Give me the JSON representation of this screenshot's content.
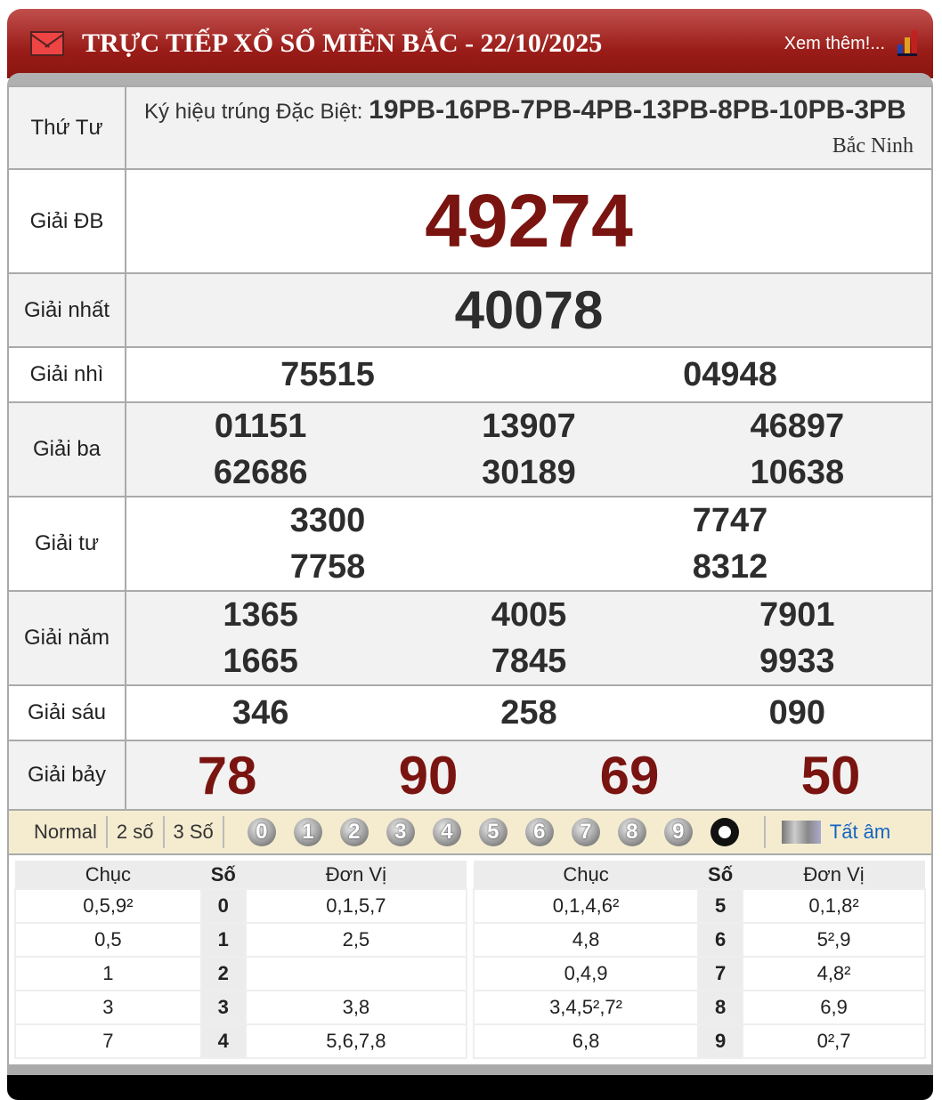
{
  "header": {
    "title": "TRỰC TIẾP XỔ SỐ MIỀN BẮC - 22/10/2025",
    "more": "Xem thêm!..."
  },
  "info": {
    "day": "Thứ Tư",
    "code_label": "Ký hiệu trúng Đặc Biệt: ",
    "codes": "19PB-16PB-7PB-4PB-13PB-8PB-10PB-3PB",
    "province": "Bắc Ninh"
  },
  "prizes": {
    "db": {
      "label": "Giải ĐB",
      "values": [
        "49274"
      ]
    },
    "nhat": {
      "label": "Giải nhất",
      "values": [
        "40078"
      ]
    },
    "nhi": {
      "label": "Giải nhì",
      "values": [
        "75515",
        "04948"
      ]
    },
    "ba": {
      "label": "Giải ba",
      "values": [
        "01151",
        "13907",
        "46897",
        "62686",
        "30189",
        "10638"
      ]
    },
    "tu": {
      "label": "Giải tư",
      "values": [
        "3300",
        "7747",
        "7758",
        "8312"
      ]
    },
    "nam": {
      "label": "Giải năm",
      "values": [
        "1365",
        "4005",
        "7901",
        "1665",
        "7845",
        "9933"
      ]
    },
    "sau": {
      "label": "Giải sáu",
      "values": [
        "346",
        "258",
        "090"
      ]
    },
    "bay": {
      "label": "Giải bảy",
      "values": [
        "78",
        "90",
        "69",
        "50"
      ]
    }
  },
  "toolbar": {
    "options": [
      "Normal",
      "2 số",
      "3 Số"
    ],
    "digits": [
      "0",
      "1",
      "2",
      "3",
      "4",
      "5",
      "6",
      "7",
      "8",
      "9"
    ],
    "all": "Tất âm"
  },
  "loto": {
    "headers": [
      "Chục",
      "Số",
      "Đơn Vị"
    ],
    "left": [
      [
        "0,5,9²",
        "0",
        "0,1,5,7"
      ],
      [
        "0,5",
        "1",
        "2,5"
      ],
      [
        "1",
        "2",
        ""
      ],
      [
        "3",
        "3",
        "3,8"
      ],
      [
        "7",
        "4",
        "5,6,7,8"
      ]
    ],
    "right": [
      [
        "0,1,4,6²",
        "5",
        "0,1,8²"
      ],
      [
        "4,8",
        "6",
        "5²,9"
      ],
      [
        "0,4,9",
        "7",
        "4,8²"
      ],
      [
        "3,4,5²,7²",
        "8",
        "6,9"
      ],
      [
        "6,8",
        "9",
        "0²,7"
      ]
    ]
  },
  "colors": {
    "header": "#9a1c18",
    "special": "#7a1410",
    "link": "#1565c0"
  }
}
